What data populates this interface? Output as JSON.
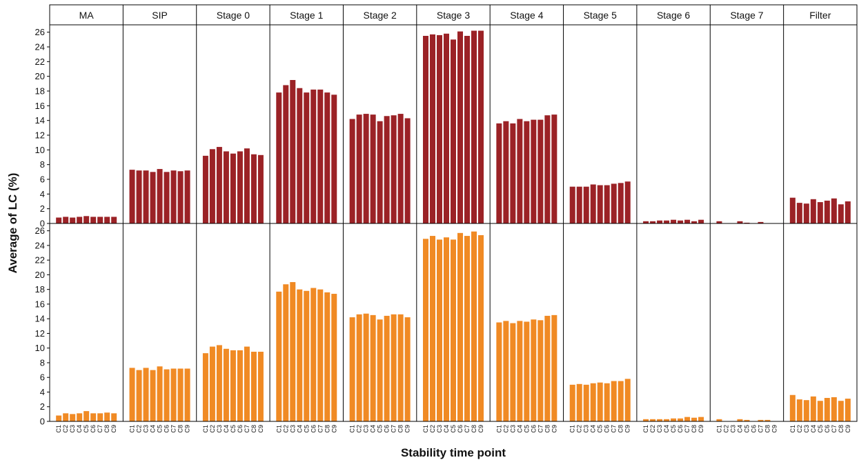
{
  "chart_data": {
    "type": "bar",
    "xlabel": "Stability time point",
    "ylabel": "Average of LC (%)",
    "ylim": [
      0,
      27
    ],
    "yticks": [
      0,
      2,
      4,
      6,
      8,
      10,
      12,
      14,
      16,
      18,
      20,
      22,
      24,
      26
    ],
    "categories": [
      "C1",
      "C2",
      "C3",
      "C4",
      "C5",
      "C6",
      "C7",
      "C8",
      "C9"
    ],
    "panels": [
      "MA",
      "SIP",
      "Stage 0",
      "Stage 1",
      "Stage 2",
      "Stage 3",
      "Stage 4",
      "Stage 5",
      "Stage 6",
      "Stage 7",
      "Filter"
    ],
    "grid": false,
    "series": [
      {
        "color": "#9b2226",
        "values": [
          [
            0.8,
            0.9,
            0.8,
            0.9,
            1.0,
            0.9,
            0.9,
            0.9,
            0.9
          ],
          [
            7.3,
            7.2,
            7.2,
            7.0,
            7.4,
            7.0,
            7.2,
            7.1,
            7.2
          ],
          [
            9.2,
            10.1,
            10.4,
            9.8,
            9.5,
            9.8,
            10.2,
            9.4,
            9.3
          ],
          [
            17.8,
            18.8,
            19.5,
            18.4,
            17.8,
            18.2,
            18.2,
            17.8,
            17.5
          ],
          [
            14.2,
            14.8,
            14.9,
            14.8,
            13.9,
            14.6,
            14.7,
            14.9,
            14.3
          ],
          [
            25.5,
            25.7,
            25.6,
            25.8,
            25.0,
            26.1,
            25.5,
            26.2,
            26.2
          ],
          [
            13.6,
            13.9,
            13.6,
            14.2,
            13.9,
            14.1,
            14.1,
            14.7,
            14.8
          ],
          [
            5.0,
            5.0,
            5.0,
            5.3,
            5.2,
            5.2,
            5.4,
            5.5,
            5.7
          ],
          [
            0.3,
            0.3,
            0.4,
            0.4,
            0.5,
            0.4,
            0.5,
            0.3,
            0.5
          ],
          [
            0.3,
            0.0,
            0.0,
            0.3,
            0.1,
            0.0,
            0.2,
            0.0,
            0.0
          ],
          [
            3.5,
            2.8,
            2.7,
            3.3,
            2.9,
            3.1,
            3.4,
            2.6,
            3.0
          ]
        ]
      },
      {
        "color": "#f08a24",
        "values": [
          [
            0.8,
            1.1,
            1.0,
            1.1,
            1.4,
            1.1,
            1.1,
            1.2,
            1.1
          ],
          [
            7.3,
            7.0,
            7.3,
            7.0,
            7.5,
            7.1,
            7.2,
            7.2,
            7.2
          ],
          [
            9.3,
            10.2,
            10.4,
            9.9,
            9.7,
            9.7,
            10.2,
            9.5,
            9.5
          ],
          [
            17.7,
            18.7,
            19.0,
            18.0,
            17.8,
            18.2,
            18.0,
            17.6,
            17.4
          ],
          [
            14.2,
            14.6,
            14.7,
            14.5,
            13.9,
            14.4,
            14.6,
            14.6,
            14.2
          ],
          [
            24.9,
            25.3,
            24.8,
            25.1,
            24.8,
            25.7,
            25.3,
            25.9,
            25.4
          ],
          [
            13.5,
            13.7,
            13.4,
            13.7,
            13.6,
            13.9,
            13.8,
            14.4,
            14.5
          ],
          [
            5.0,
            5.1,
            5.0,
            5.2,
            5.3,
            5.2,
            5.5,
            5.5,
            5.8
          ],
          [
            0.3,
            0.3,
            0.3,
            0.3,
            0.4,
            0.4,
            0.6,
            0.5,
            0.6
          ],
          [
            0.3,
            0.0,
            0.0,
            0.3,
            0.2,
            0.0,
            0.2,
            0.2,
            0.0
          ],
          [
            3.6,
            3.0,
            2.9,
            3.4,
            2.8,
            3.2,
            3.3,
            2.8,
            3.1
          ]
        ]
      }
    ]
  }
}
